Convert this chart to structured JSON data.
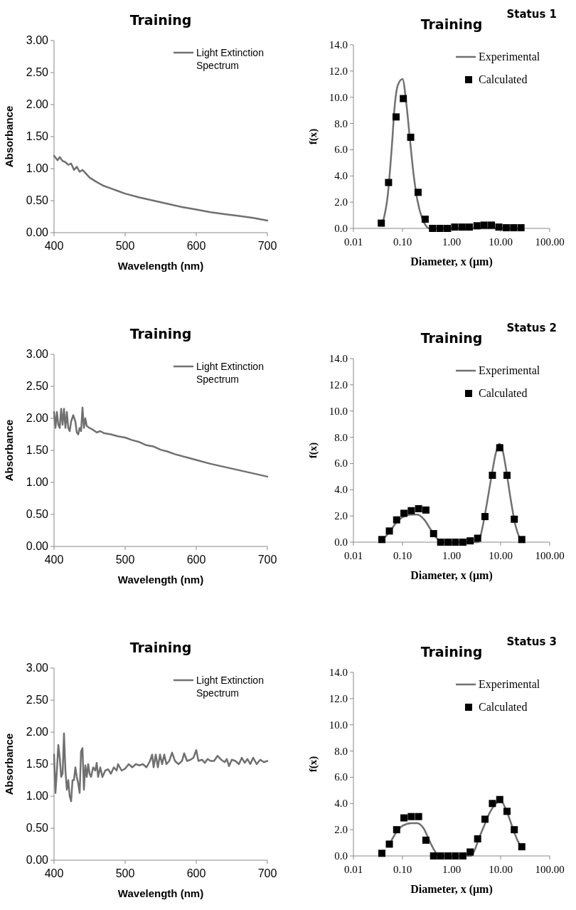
{
  "chart_data": [
    {
      "type": "line",
      "title": "Training",
      "xlabel": "Wavelength (nm)",
      "ylabel": "Absorbance",
      "xlim": [
        400,
        700
      ],
      "xticks": [
        400,
        500,
        600,
        700
      ],
      "ylim": [
        0,
        3
      ],
      "yticks": [
        {
          "value": 0,
          "label": "0.00"
        },
        {
          "value": 0.5,
          "label": "0.50"
        },
        {
          "value": 1,
          "label": "1.00"
        },
        {
          "value": 1.5,
          "label": "1.50"
        },
        {
          "value": 2,
          "label": "2.00"
        },
        {
          "value": 2.5,
          "label": "2.50"
        },
        {
          "value": 3,
          "label": "3.00"
        }
      ],
      "legend": "top right",
      "series": [
        {
          "name": "Light Extinction Spectrum",
          "color": "#707070",
          "x": [
            400,
            405,
            408,
            412,
            416,
            420,
            424,
            428,
            432,
            436,
            440,
            445,
            450,
            460,
            470,
            480,
            490,
            500,
            520,
            540,
            560,
            580,
            600,
            620,
            640,
            660,
            680,
            700
          ],
          "values": [
            1.2,
            1.13,
            1.18,
            1.12,
            1.1,
            1.06,
            1.08,
            0.98,
            1.03,
            0.95,
            0.98,
            0.92,
            0.86,
            0.79,
            0.73,
            0.69,
            0.65,
            0.61,
            0.55,
            0.5,
            0.45,
            0.4,
            0.36,
            0.32,
            0.29,
            0.26,
            0.23,
            0.19
          ]
        }
      ]
    },
    {
      "type": "line",
      "title": "Training",
      "xlabel": "Diameter, x (μm)",
      "ylabel": "f(x)",
      "annotations": [
        "Status 1"
      ],
      "log": "x",
      "xlim": [
        0.01,
        100
      ],
      "xticks": [
        0.01,
        {
          "value": 0.1,
          "label": "0.10"
        },
        {
          "value": 1,
          "label": "1.00"
        },
        {
          "value": 10,
          "label": "10.00"
        },
        {
          "value": 100,
          "label": "100.00"
        }
      ],
      "ylim": [
        0,
        14
      ],
      "yticks": [
        {
          "value": 0,
          "label": "0.0"
        },
        {
          "value": 2,
          "label": "2.0"
        },
        {
          "value": 4,
          "label": "4.0"
        },
        {
          "value": 6,
          "label": "6.0"
        },
        {
          "value": 8,
          "label": "8.0"
        },
        {
          "value": 10,
          "label": "10.0"
        },
        {
          "value": 12,
          "label": "12.0"
        },
        {
          "value": 14,
          "label": "14.0"
        }
      ],
      "legend": "top right",
      "series": [
        {
          "name": "Experimental",
          "color": "#707070",
          "x": [
            0.04,
            0.05,
            0.06,
            0.07,
            0.08,
            0.1,
            0.12,
            0.14,
            0.17,
            0.2,
            0.25,
            0.3,
            0.35,
            1,
            10,
            28
          ],
          "values": [
            0.5,
            2.5,
            6,
            9.5,
            10.9,
            11.4,
            9.5,
            7,
            4,
            2.2,
            0.8,
            0.2,
            0,
            0,
            0,
            0
          ]
        },
        {
          "name": "Calculated",
          "type": "scatter",
          "marker": "square",
          "color": "#000000",
          "x": [
            0.037,
            0.052,
            0.074,
            0.104,
            0.147,
            0.208,
            0.29,
            0.41,
            0.58,
            0.82,
            1.16,
            1.64,
            2.3,
            3.3,
            4.6,
            6.5,
            9.2,
            13,
            18.4,
            26
          ],
          "values": [
            0.4,
            3.5,
            8.5,
            9.9,
            6.95,
            2.75,
            0.7,
            0,
            0,
            0,
            0.1,
            0.1,
            0.1,
            0.2,
            0.25,
            0.25,
            0.1,
            0.05,
            0.05,
            0.05
          ]
        }
      ]
    },
    {
      "type": "line",
      "title": "Training",
      "xlabel": "Wavelength (nm)",
      "ylabel": "Absorbance",
      "xlim": [
        400,
        700
      ],
      "xticks": [
        400,
        500,
        600,
        700
      ],
      "ylim": [
        0,
        3
      ],
      "yticks": [
        {
          "value": 0,
          "label": "0.00"
        },
        {
          "value": 0.5,
          "label": "0.50"
        },
        {
          "value": 1,
          "label": "1.00"
        },
        {
          "value": 1.5,
          "label": "1.50"
        },
        {
          "value": 2,
          "label": "2.00"
        },
        {
          "value": 2.5,
          "label": "2.50"
        },
        {
          "value": 3,
          "label": "3.00"
        }
      ],
      "legend": "top right",
      "series": [
        {
          "name": "Light Extinction Spectrum",
          "color": "#707070",
          "x": [
            400,
            402,
            404,
            406,
            408,
            410,
            412,
            414,
            416,
            418,
            420,
            422,
            424,
            427,
            430,
            432,
            434,
            436,
            438,
            440,
            442,
            444,
            446,
            450,
            455,
            460,
            465,
            470,
            480,
            490,
            500,
            510,
            520,
            530,
            540,
            550,
            560,
            570,
            580,
            590,
            600,
            620,
            640,
            660,
            680,
            700
          ],
          "values": [
            2.1,
            1.85,
            2.1,
            1.9,
            1.85,
            2.15,
            1.9,
            2.15,
            1.85,
            2.1,
            1.85,
            1.8,
            1.95,
            2.05,
            1.95,
            1.78,
            1.75,
            1.85,
            1.8,
            2.17,
            1.85,
            2.0,
            1.88,
            1.85,
            1.82,
            1.78,
            1.8,
            1.77,
            1.75,
            1.72,
            1.7,
            1.66,
            1.63,
            1.58,
            1.56,
            1.51,
            1.48,
            1.44,
            1.41,
            1.38,
            1.35,
            1.29,
            1.24,
            1.19,
            1.14,
            1.09
          ]
        }
      ]
    },
    {
      "type": "line",
      "title": "Training",
      "xlabel": "Diameter, x (μm)",
      "ylabel": "f(x)",
      "annotations": [
        "Status 2"
      ],
      "log": "x",
      "xlim": [
        0.01,
        100
      ],
      "xticks": [
        0.01,
        {
          "value": 0.1,
          "label": "0.10"
        },
        {
          "value": 1,
          "label": "1.00"
        },
        {
          "value": 10,
          "label": "10.00"
        },
        {
          "value": 100,
          "label": "100.00"
        }
      ],
      "ylim": [
        0,
        14
      ],
      "yticks": [
        {
          "value": 0,
          "label": "0.0"
        },
        {
          "value": 2,
          "label": "2.0"
        },
        {
          "value": 4,
          "label": "4.0"
        },
        {
          "value": 6,
          "label": "6.0"
        },
        {
          "value": 8,
          "label": "8.0"
        },
        {
          "value": 10,
          "label": "10.0"
        },
        {
          "value": 12,
          "label": "12.0"
        },
        {
          "value": 14,
          "label": "14.0"
        }
      ],
      "legend": "top right",
      "series": [
        {
          "name": "Experimental",
          "color": "#707070",
          "x": [
            0.04,
            0.055,
            0.075,
            0.1,
            0.15,
            0.2,
            0.28,
            0.37,
            0.5,
            0.65,
            3.5,
            4.2,
            5,
            6.5,
            8,
            9.5,
            11,
            13,
            16,
            20,
            25
          ],
          "values": [
            0.2,
            0.8,
            1.5,
            1.9,
            2.1,
            2.1,
            1.7,
            1.0,
            0.3,
            0,
            0,
            1,
            2.5,
            5,
            6.8,
            7.5,
            7,
            5.5,
            3.3,
            1.3,
            0.2
          ]
        },
        {
          "name": "Calculated",
          "type": "scatter",
          "marker": "square",
          "color": "#000000",
          "x": [
            0.038,
            0.054,
            0.076,
            0.107,
            0.151,
            0.213,
            0.3,
            0.43,
            0.6,
            0.85,
            1.2,
            1.7,
            2.4,
            3.4,
            4.8,
            6.8,
            9.6,
            13.5,
            19,
            27
          ],
          "values": [
            0.2,
            0.85,
            1.7,
            2.2,
            2.4,
            2.55,
            2.45,
            0.65,
            0,
            0,
            0,
            0,
            0.1,
            0.3,
            1.95,
            5.1,
            7.2,
            5.1,
            1.75,
            0.2
          ]
        }
      ]
    },
    {
      "type": "line",
      "title": "Training",
      "xlabel": "Wavelength (nm)",
      "ylabel": "Absorbance",
      "xlim": [
        400,
        700
      ],
      "xticks": [
        400,
        500,
        600,
        700
      ],
      "ylim": [
        0,
        3
      ],
      "yticks": [
        {
          "value": 0,
          "label": "0.00"
        },
        {
          "value": 0.5,
          "label": "0.50"
        },
        {
          "value": 1,
          "label": "1.00"
        },
        {
          "value": 1.5,
          "label": "1.50"
        },
        {
          "value": 2,
          "label": "2.00"
        },
        {
          "value": 2.5,
          "label": "2.50"
        },
        {
          "value": 3,
          "label": "3.00"
        }
      ],
      "legend": "top right",
      "series": [
        {
          "name": "Light Extinction Spectrum",
          "color": "#707070",
          "x": [
            400,
            402,
            404,
            406,
            408,
            410,
            412,
            414,
            416,
            418,
            420,
            422,
            424,
            426,
            428,
            430,
            432,
            434,
            436,
            438,
            440,
            442,
            444,
            446,
            448,
            450,
            452,
            455,
            458,
            460,
            462,
            465,
            468,
            472,
            476,
            480,
            484,
            488,
            490,
            495,
            500,
            505,
            510,
            515,
            520,
            525,
            530,
            535,
            538,
            540,
            543,
            546,
            549,
            552,
            555,
            558,
            562,
            566,
            570,
            575,
            580,
            583,
            587,
            592,
            596,
            600,
            603,
            608,
            612,
            616,
            620,
            625,
            630,
            635,
            640,
            643,
            646,
            650,
            655,
            660,
            664,
            668,
            672,
            676,
            680,
            685,
            690,
            695,
            700
          ],
          "values": [
            1.65,
            1.05,
            1.4,
            1.8,
            1.6,
            1.3,
            1.35,
            1.98,
            1.4,
            1.1,
            1.25,
            1.0,
            0.92,
            1.25,
            1.25,
            1.45,
            1.3,
            1.2,
            1.05,
            1.7,
            1.75,
            1.1,
            1.48,
            1.3,
            1.5,
            1.35,
            1.3,
            1.45,
            1.4,
            1.52,
            1.3,
            1.45,
            1.3,
            1.4,
            1.42,
            1.35,
            1.45,
            1.4,
            1.5,
            1.4,
            1.43,
            1.5,
            1.45,
            1.5,
            1.48,
            1.5,
            1.45,
            1.55,
            1.65,
            1.45,
            1.65,
            1.45,
            1.65,
            1.5,
            1.65,
            1.5,
            1.55,
            1.68,
            1.55,
            1.5,
            1.55,
            1.67,
            1.55,
            1.57,
            1.6,
            1.72,
            1.55,
            1.57,
            1.52,
            1.58,
            1.55,
            1.55,
            1.63,
            1.57,
            1.53,
            1.58,
            1.47,
            1.57,
            1.55,
            1.5,
            1.6,
            1.52,
            1.58,
            1.5,
            1.6,
            1.5,
            1.57,
            1.53,
            1.55
          ]
        }
      ]
    },
    {
      "type": "line",
      "title": "Training",
      "xlabel": "Diameter, x (μm)",
      "ylabel": "f(x)",
      "annotations": [
        "Status 3"
      ],
      "log": "x",
      "xlim": [
        0.01,
        100
      ],
      "xticks": [
        0.01,
        {
          "value": 0.1,
          "label": "0.10"
        },
        {
          "value": 1,
          "label": "1.00"
        },
        {
          "value": 10,
          "label": "10.00"
        },
        {
          "value": 100,
          "label": "100.00"
        }
      ],
      "ylim": [
        0,
        14
      ],
      "yticks": [
        {
          "value": 0,
          "label": "0.0"
        },
        {
          "value": 2,
          "label": "2.0"
        },
        {
          "value": 4,
          "label": "4.0"
        },
        {
          "value": 6,
          "label": "6.0"
        },
        {
          "value": 8,
          "label": "8.0"
        },
        {
          "value": 10,
          "label": "10.0"
        },
        {
          "value": 12,
          "label": "12.0"
        },
        {
          "value": 14,
          "label": "14.0"
        }
      ],
      "legend": "top right",
      "series": [
        {
          "name": "Experimental",
          "color": "#707070",
          "x": [
            0.06,
            0.075,
            0.1,
            0.15,
            0.2,
            0.27,
            0.35,
            0.45,
            0.55,
            2.5,
            3,
            3.5,
            4.5,
            6,
            8,
            10,
            13,
            17,
            22,
            27
          ],
          "values": [
            1.2,
            1.8,
            2.3,
            2.5,
            2.5,
            2.1,
            1.2,
            0.4,
            0,
            0,
            0.5,
            1.2,
            2.2,
            3.3,
            4,
            4.2,
            3.5,
            2.3,
            1.2,
            0.6
          ]
        },
        {
          "name": "Calculated",
          "type": "scatter",
          "marker": "square",
          "color": "#000000",
          "x": [
            0.038,
            0.054,
            0.076,
            0.107,
            0.151,
            0.213,
            0.3,
            0.43,
            0.6,
            0.85,
            1.2,
            1.7,
            2.4,
            3.4,
            4.8,
            6.8,
            9.6,
            13.5,
            19,
            27
          ],
          "values": [
            0.2,
            0.9,
            2.0,
            2.9,
            3.0,
            3.0,
            1.2,
            0,
            0,
            0,
            0,
            0,
            0.3,
            1.3,
            2.8,
            4.0,
            4.3,
            3.4,
            2.0,
            0.7
          ]
        }
      ]
    }
  ]
}
